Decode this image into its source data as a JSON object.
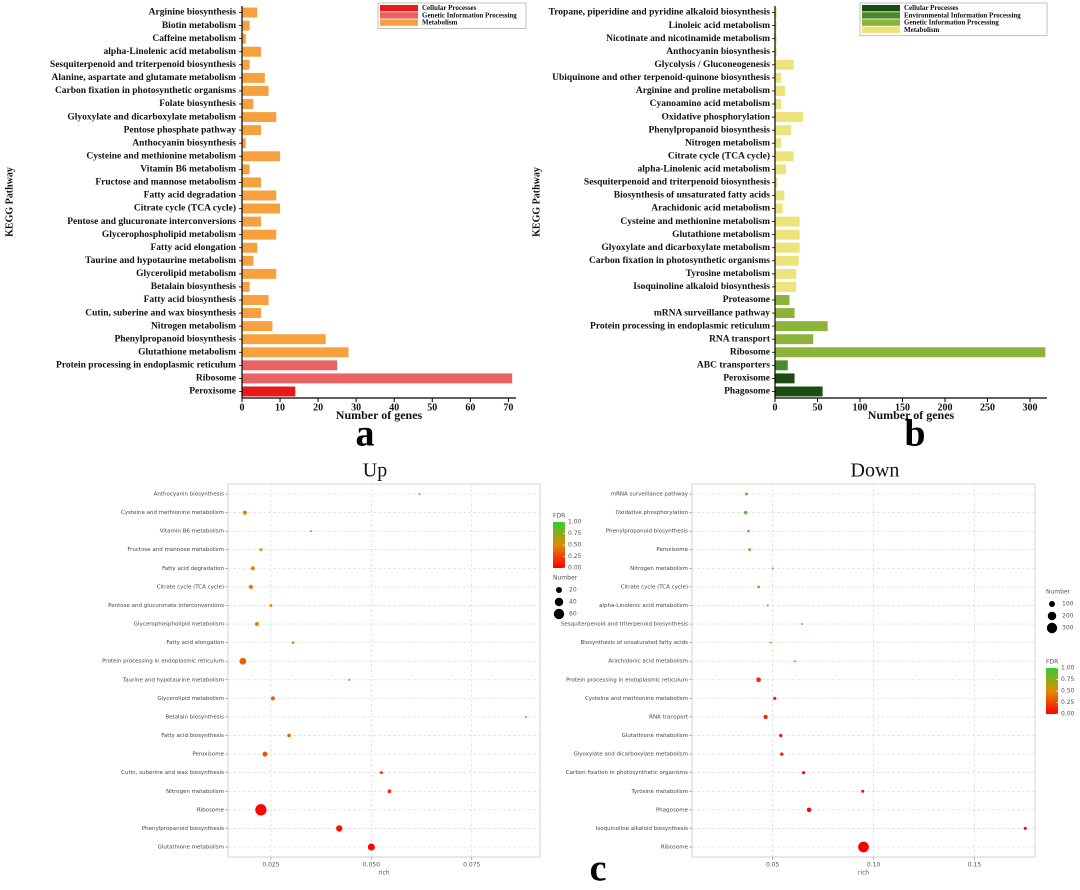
{
  "panels": [
    "a",
    "b",
    "c"
  ],
  "chart_data": [
    {
      "type": "bar",
      "orientation": "horizontal",
      "xlabel": "Number of genes",
      "ylabel": "KEGG Pathway",
      "categories": [
        "Arginine biosynthesis",
        "Biotin metabolism",
        "Caffeine metabolism",
        "alpha-Linolenic acid metabolism",
        "Sesquiterpenoid and triterpenoid biosynthesis",
        "Alanine, aspartate and glutamate metabolism",
        "Carbon fixation in photosynthetic organisms",
        "Folate biosynthesis",
        "Glyoxylate and dicarboxylate metabolism",
        "Pentose phosphate pathway",
        "Anthocyanin biosynthesis",
        "Cysteine and methionine metabolism",
        "Vitamin B6 metabolism",
        "Fructose and mannose metabolism",
        "Fatty acid degradation",
        "Citrate cycle (TCA cycle)",
        "Pentose and glucuronate interconversions",
        "Glycerophospholipid metabolism",
        "Fatty acid elongation",
        "Taurine and hypotaurine metabolism",
        "Glycerolipid metabolism",
        "Betalain biosynthesis",
        "Fatty acid biosynthesis",
        "Cutin, suberine and wax biosynthesis",
        "Nitrogen metabolism",
        "Phenylpropanoid biosynthesis",
        "Glutathione metabolism",
        "Protein processing in endoplasmic reticulum",
        "Ribosome",
        "Peroxisome"
      ],
      "series": [
        {
          "name": "Cellular Processes",
          "color": "#e8191b",
          "values": [
            null,
            null,
            null,
            null,
            null,
            null,
            null,
            null,
            null,
            null,
            null,
            null,
            null,
            null,
            null,
            null,
            null,
            null,
            null,
            null,
            null,
            null,
            null,
            null,
            null,
            null,
            null,
            null,
            null,
            14
          ]
        },
        {
          "name": "Genetic Information Processing",
          "color": "#e86262",
          "values": [
            null,
            null,
            null,
            null,
            null,
            null,
            null,
            null,
            null,
            null,
            null,
            null,
            null,
            null,
            null,
            null,
            null,
            null,
            null,
            null,
            null,
            null,
            null,
            null,
            null,
            null,
            null,
            25,
            71,
            null
          ]
        },
        {
          "name": "Metabolism",
          "color": "#f7a13e",
          "values": [
            4,
            2,
            1,
            5,
            2,
            6,
            7,
            3,
            9,
            5,
            1,
            10,
            2,
            5,
            9,
            10,
            5,
            9,
            4,
            3,
            9,
            2,
            7,
            5,
            8,
            22,
            28,
            null,
            null,
            null
          ]
        }
      ],
      "xlim": [
        0,
        72
      ],
      "xticks": [
        0,
        10,
        20,
        30,
        40,
        50,
        60,
        70
      ],
      "legend": "top-right"
    },
    {
      "type": "bar",
      "orientation": "horizontal",
      "xlabel": "Number of genes",
      "ylabel": "KEGG Pathway",
      "categories": [
        "Tropane, piperidine and pyridine alkaloid biosynthesis",
        "Linoleic acid metabolism",
        "Nicotinate and nicotinamide metabolism",
        "Anthocyanin biosynthesis",
        "Glycolysis / Gluconeogenesis",
        "Ubiquinone and other terpenoid-quinone biosynthesis",
        "Arginine and proline metabolism",
        "Cyanoamino acid metabolism",
        "Oxidative phosphorylation",
        "Phenylpropanoid biosynthesis",
        "Nitrogen metabolism",
        "Citrate cycle (TCA cycle)",
        "alpha-Linolenic acid metabolism",
        "Sesquiterpenoid and triterpenoid biosynthesis",
        "Biosynthesis of unsaturated fatty acids",
        "Arachidonic acid metabolism",
        "Cysteine and methionine metabolism",
        "Glutathione metabolism",
        "Glyoxylate and dicarboxylate metabolism",
        "Carbon fixation in photosynthetic organisms",
        "Tyrosine metabolism",
        "Isoquinoline alkaloid biosynthesis",
        "Proteasome",
        "mRNA surveillance pathway",
        "Protein processing in endoplasmic reticulum",
        "RNA transport",
        "Ribosome",
        "ABC transporters",
        "Peroxisome",
        "Phagosome"
      ],
      "series": [
        {
          "name": "Cellular Processes",
          "color": "#1d4c12",
          "values": [
            null,
            null,
            null,
            null,
            null,
            null,
            null,
            null,
            null,
            null,
            null,
            null,
            null,
            null,
            null,
            null,
            null,
            null,
            null,
            null,
            null,
            null,
            null,
            null,
            null,
            null,
            null,
            null,
            23,
            56
          ]
        },
        {
          "name": "Environmental Information Processing",
          "color": "#4b8a2b",
          "values": [
            null,
            null,
            null,
            null,
            null,
            null,
            null,
            null,
            null,
            null,
            null,
            null,
            null,
            null,
            null,
            null,
            null,
            null,
            null,
            null,
            null,
            null,
            null,
            null,
            null,
            null,
            null,
            15,
            null,
            null
          ]
        },
        {
          "name": "Genetic Information Processing",
          "color": "#8cb33a",
          "values": [
            null,
            null,
            null,
            null,
            null,
            null,
            null,
            null,
            null,
            null,
            null,
            null,
            null,
            null,
            null,
            null,
            null,
            null,
            null,
            null,
            null,
            null,
            17,
            23,
            62,
            45,
            318,
            null,
            null,
            null
          ]
        },
        {
          "name": "Metabolism",
          "color": "#ece47a",
          "values": [
            2,
            2,
            2,
            2,
            22,
            7,
            12,
            7,
            33,
            19,
            7,
            22,
            13,
            3,
            11,
            9,
            29,
            29,
            29,
            28,
            25,
            25,
            null,
            null,
            null,
            null,
            null,
            null,
            null,
            null
          ]
        }
      ],
      "xlim": [
        0,
        320
      ],
      "xticks": [
        0,
        50,
        100,
        150,
        200,
        250,
        300
      ],
      "legend": "top-right"
    },
    {
      "type": "scatter",
      "title": "Up",
      "xlabel": "rich",
      "categories": [
        "Anthocyanin biosynthesis",
        "Cysteine and methionine metabolism",
        "Vitamin B6 metabolism",
        "Fructose and mannose metabolism",
        "Fatty acid degradation",
        "Citrate cycle (TCA cycle)",
        "Pentose and glucuronate interconversions",
        "Glycerophospholipid metabolism",
        "Fatty acid elongation",
        "Protein processing in endoplasmic reticulum",
        "Taurine and hypotaurine metabolism",
        "Glycerolipid metabolism",
        "Betalain biosynthesis",
        "Fatty acid biosynthesis",
        "Peroxisome",
        "Cutin, suberine and wax biosynthesis",
        "Nitrogen metabolism",
        "Ribosome",
        "Phenylpropanoid biosynthesis",
        "Glutathione metabolism"
      ],
      "x": [
        0.062,
        0.0185,
        0.035,
        0.0225,
        0.0205,
        0.02,
        0.025,
        0.0215,
        0.0305,
        0.018,
        0.0445,
        0.0255,
        0.0885,
        0.0295,
        0.0235,
        0.0525,
        0.0545,
        0.0225,
        0.042,
        0.05
      ],
      "number": [
        1,
        10,
        2,
        5,
        9,
        10,
        5,
        9,
        4,
        25,
        3,
        9,
        2,
        7,
        14,
        5,
        8,
        71,
        22,
        28
      ],
      "fdr": [
        0.8,
        0.5,
        0.75,
        0.55,
        0.5,
        0.45,
        0.5,
        0.45,
        0.5,
        0.35,
        0.6,
        0.35,
        0.7,
        0.35,
        0.3,
        0.2,
        0.15,
        0.02,
        0.05,
        0.03
      ],
      "xlim": [
        0.0143,
        0.092
      ],
      "xticks": [
        {
          "value": 0.025,
          "label": "0.025"
        },
        {
          "value": 0.05,
          "label": "0.050"
        },
        {
          "value": 0.075,
          "label": "0.075"
        }
      ],
      "grid": true,
      "color_legend_title": "FDR",
      "color_lim": [
        0,
        1
      ],
      "fdr_colors": [
        "#ff0000",
        "#e08c00",
        "#33cc33"
      ],
      "color_ticks": [
        {
          "value": 0,
          "label": "0.00"
        },
        0.25,
        {
          "value": 0.5,
          "label": "0.50"
        },
        0.75,
        {
          "value": 1,
          "label": "1.00"
        }
      ],
      "size_legend_title": "Number",
      "size_ticks": [
        20,
        40,
        60
      ]
    },
    {
      "type": "scatter",
      "title": "Down",
      "xlabel": "rich",
      "categories": [
        "mRNA surveillance pathway",
        "Oxidative phosphorylation",
        "Phenylpropanoid biosynthesis",
        "Peroxisome",
        "Nitrogen metabolism",
        "Citrate cycle (TCA cycle)",
        "alpha-Linolenic acid metabolism",
        "Sesquiterpenoid and triterpenoid biosynthesis",
        "Biosynthesis of unsaturated fatty acids",
        "Arachidonic acid metabolism",
        "Protein processing in endoplasmic reticulum",
        "Cysteine and methionine metabolism",
        "RNA transport",
        "Glutathione metabolism",
        "Glyoxylate and dicarboxylate metabolism",
        "Carbon fixation in photosynthetic organisms",
        "Tyrosine metabolism",
        "Phagosome",
        "Isoquinoline alkaloid biosynthesis",
        "Ribosome"
      ],
      "x": [
        0.037,
        0.0366,
        0.038,
        0.0386,
        0.05,
        0.043,
        0.0475,
        0.0644,
        0.049,
        0.061,
        0.043,
        0.051,
        0.0465,
        0.054,
        0.0545,
        0.0653,
        0.0946,
        0.068,
        0.1752,
        0.095
      ],
      "number": [
        23,
        33,
        19,
        23,
        7,
        22,
        13,
        3,
        11,
        9,
        62,
        29,
        45,
        29,
        29,
        28,
        25,
        56,
        25,
        318
      ],
      "fdr": [
        0.9,
        0.95,
        0.9,
        0.9,
        0.85,
        0.75,
        0.7,
        0.6,
        0.6,
        0.4,
        0.15,
        0.1,
        0.1,
        0.05,
        0.05,
        0.03,
        0.02,
        0.01,
        0.02,
        0
      ],
      "xlim": [
        0.01,
        0.18
      ],
      "xticks": [
        0.05,
        {
          "value": 0.1,
          "label": "0.10"
        },
        0.15
      ],
      "grid": true,
      "color_legend_title": "FDR",
      "color_lim": [
        0,
        1
      ],
      "fdr_colors": [
        "#ff0000",
        "#e08c00",
        "#33cc33"
      ],
      "color_ticks": [
        {
          "value": 0,
          "label": "0.00"
        },
        0.25,
        {
          "value": 0.5,
          "label": "0.50"
        },
        0.75,
        {
          "value": 1,
          "label": "1.00"
        }
      ],
      "size_legend_title": "Number",
      "size_ticks": [
        100,
        200,
        300
      ]
    }
  ]
}
